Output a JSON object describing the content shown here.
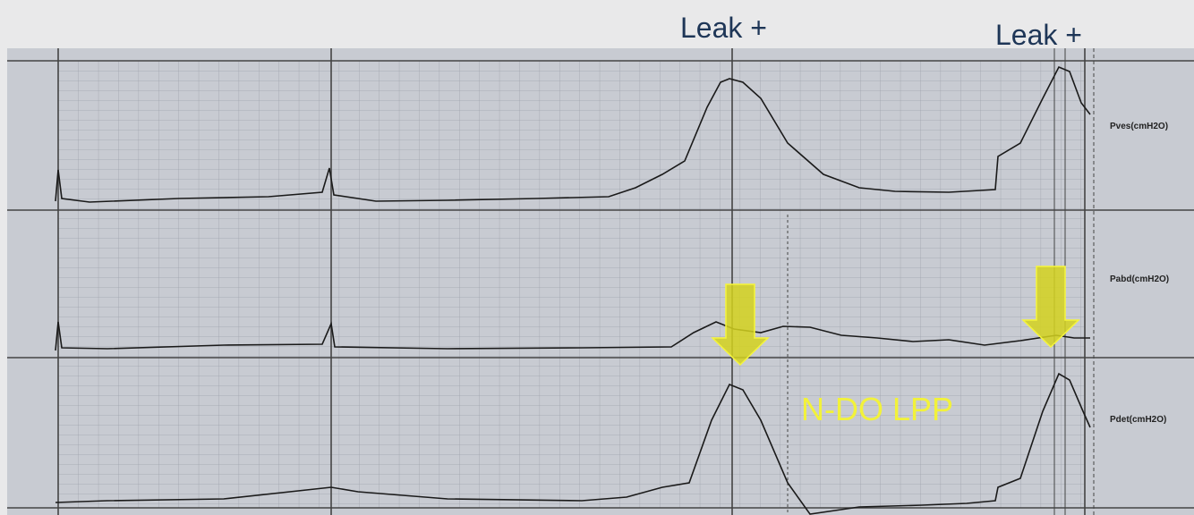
{
  "annotations": {
    "leak_labels": [
      "Leak +",
      "Leak +"
    ],
    "finding": "N-DO LPP"
  },
  "channels": [
    {
      "label": "Pves(cmH2O)"
    },
    {
      "label": "Pabd(cmH2O)"
    },
    {
      "label": "Pdet(cmH2O)"
    }
  ]
}
